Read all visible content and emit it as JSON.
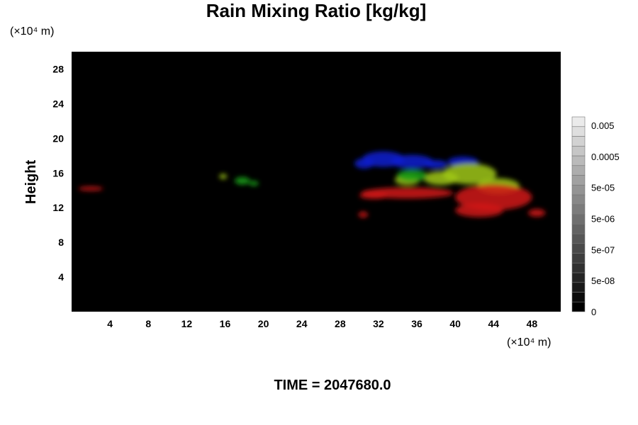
{
  "chart_data": {
    "type": "heatmap",
    "title": "Rain Mixing Ratio [kg/kg]",
    "xlabel": "",
    "ylabel": "Height",
    "x_unit": "(×10⁴ m)",
    "y_unit": "(×10⁴ m)",
    "xlim": [
      0,
      51
    ],
    "ylim": [
      0,
      30
    ],
    "xticks": [
      4,
      8,
      12,
      16,
      20,
      24,
      28,
      32,
      36,
      40,
      44,
      48
    ],
    "yticks": [
      4,
      8,
      12,
      16,
      20,
      24,
      28
    ],
    "background": "#000000",
    "colorbar": {
      "labels": [
        "0",
        "5e-08",
        "5e-07",
        "5e-06",
        "5e-05",
        "0.0005",
        "0.005"
      ],
      "levels": 20
    },
    "layers": [
      {
        "color": "#0a1ed2",
        "blobs": [
          [
            32.5,
            17.6,
            2.2,
            0.9
          ],
          [
            35.5,
            17.3,
            2.2,
            0.8
          ],
          [
            30.5,
            17.1,
            1.0,
            0.6
          ],
          [
            40.8,
            17.3,
            1.6,
            0.6
          ],
          [
            38.0,
            17.0,
            1.2,
            0.5
          ]
        ]
      },
      {
        "color": "#a0c814",
        "blobs": [
          [
            41.5,
            15.9,
            2.8,
            1.2
          ],
          [
            44.5,
            14.5,
            2.2,
            0.9
          ],
          [
            38.5,
            15.4,
            1.8,
            0.8
          ],
          [
            35.0,
            15.2,
            1.3,
            0.6
          ],
          [
            15.8,
            15.6,
            0.4,
            0.3
          ]
        ]
      },
      {
        "color": "#14a014",
        "blobs": [
          [
            35.5,
            15.7,
            1.6,
            0.7
          ],
          [
            17.8,
            15.1,
            0.8,
            0.45
          ],
          [
            19.0,
            14.8,
            0.5,
            0.3
          ]
        ]
      },
      {
        "color": "#d21414",
        "blobs": [
          [
            44.0,
            13.2,
            4.0,
            1.5
          ],
          [
            42.5,
            11.7,
            2.5,
            0.8
          ],
          [
            35.0,
            13.7,
            4.8,
            0.65
          ],
          [
            31.5,
            13.4,
            1.5,
            0.4
          ],
          [
            48.5,
            11.4,
            0.9,
            0.45
          ],
          [
            30.4,
            11.2,
            0.5,
            0.35
          ],
          [
            2.0,
            14.2,
            1.3,
            0.25
          ]
        ]
      }
    ],
    "annotation": "TIME = 2047680.0"
  }
}
